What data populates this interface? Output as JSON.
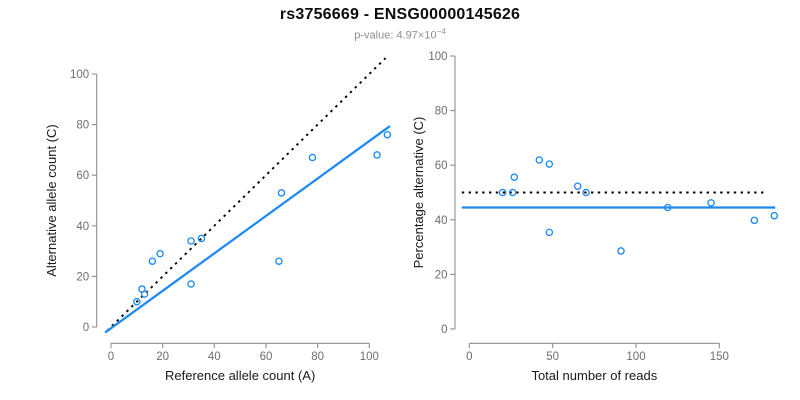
{
  "title": "rs3756669 - ENSG00000145626",
  "subtitle": {
    "label": "p-value: ",
    "coefficient": "4.97",
    "times": "×",
    "base": "10",
    "exponent": "−4"
  },
  "colors": {
    "accent_blue": "#1f8bef",
    "axis_gray": "#8f8f8f",
    "tick_text_gray": "#6e6e6e",
    "dotted_black": "#000000"
  },
  "chart_data": [
    {
      "type": "scatter",
      "name": "allele-count-scatter",
      "title": "",
      "xlabel": "Reference allele count (A)",
      "ylabel": "Alternative allele count (C)",
      "xlim": [
        0,
        100
      ],
      "ylim": [
        0,
        100
      ],
      "xticks": [
        0,
        20,
        40,
        60,
        80,
        100
      ],
      "yticks": [
        0,
        20,
        40,
        60,
        80,
        100
      ],
      "grid": false,
      "point_color": "#1f8bef",
      "points": [
        [
          10,
          10
        ],
        [
          13,
          13
        ],
        [
          12,
          15
        ],
        [
          16,
          26
        ],
        [
          19,
          29
        ],
        [
          31,
          17
        ],
        [
          31,
          34
        ],
        [
          35,
          35
        ],
        [
          65,
          26
        ],
        [
          66,
          53
        ],
        [
          78,
          67
        ],
        [
          103,
          68
        ],
        [
          107,
          76
        ]
      ],
      "lines": [
        {
          "name": "identity-expected-line",
          "style": "dotted",
          "color": "#000000",
          "slope": 1,
          "intercept": 0,
          "x_from": -1.5,
          "x_to": 106.3
        },
        {
          "name": "fitted-regression-line",
          "style": "solid",
          "color": "#1f8bef",
          "slope": 0.74,
          "intercept": -0.5,
          "x_from": -2.3,
          "x_to": 108
        }
      ]
    },
    {
      "type": "scatter",
      "name": "percentage-vs-reads-scatter",
      "title": "",
      "xlabel": "Total number of reads",
      "ylabel": "Percentage alternative (C)",
      "xlim": [
        0,
        150
      ],
      "ylim": [
        0,
        100
      ],
      "xticks": [
        0,
        50,
        100,
        150
      ],
      "yticks": [
        0,
        20,
        40,
        60,
        80,
        100
      ],
      "grid": false,
      "point_color": "#1f8bef",
      "points": [
        [
          20,
          50
        ],
        [
          26,
          50
        ],
        [
          27,
          55.6
        ],
        [
          42,
          61.9
        ],
        [
          48,
          60.4
        ],
        [
          48,
          35.4
        ],
        [
          65,
          52.3
        ],
        [
          70,
          50
        ],
        [
          91,
          28.6
        ],
        [
          119,
          44.5
        ],
        [
          145,
          46.2
        ],
        [
          171,
          39.8
        ],
        [
          183,
          41.5
        ]
      ],
      "lines": [
        {
          "name": "expected-50-percent-line",
          "style": "dotted",
          "color": "#000000",
          "slope": 0,
          "intercept": 50,
          "x_from": -4.5,
          "x_to": 179
        },
        {
          "name": "mean-percentage-line",
          "style": "solid",
          "color": "#1f8bef",
          "slope": 0,
          "intercept": 44.5,
          "x_from": -4.5,
          "x_to": 183.5
        }
      ]
    }
  ]
}
